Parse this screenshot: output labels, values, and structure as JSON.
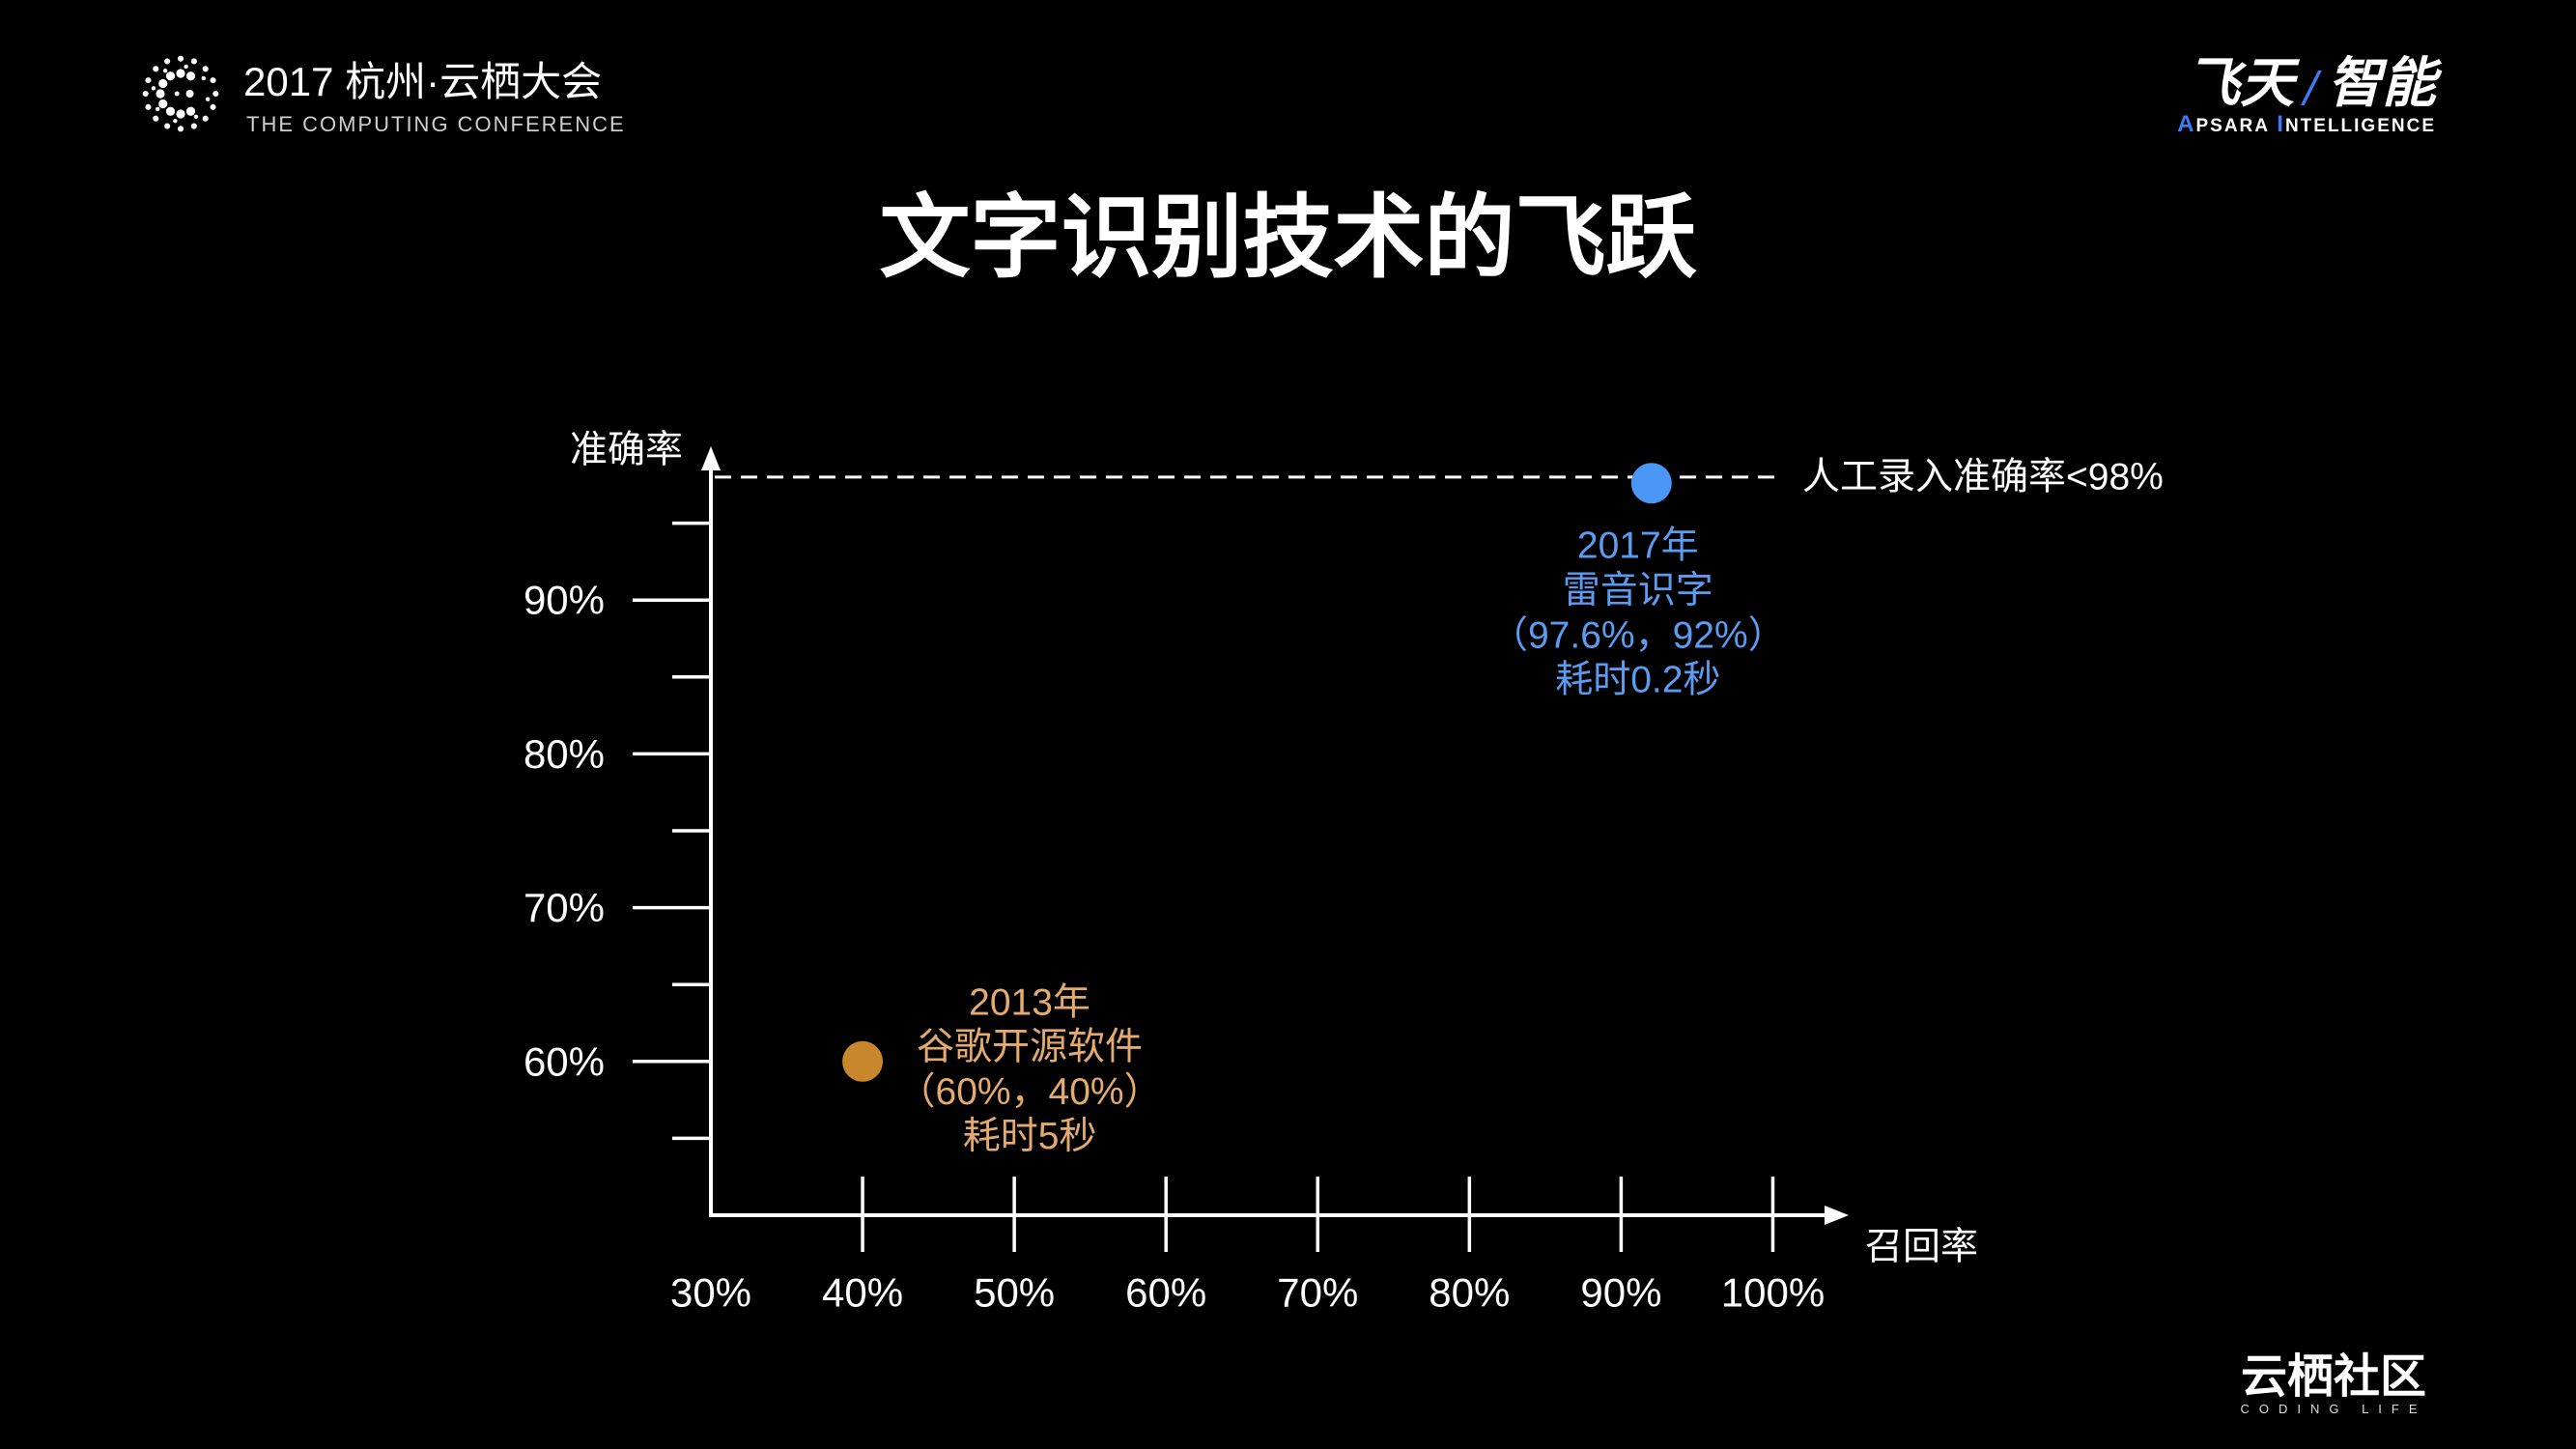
{
  "header": {
    "conference_title": "2017 杭州·云栖大会",
    "conference_subtitle": "THE COMPUTING CONFERENCE",
    "logo_icon": "dotted-circle-logo-icon",
    "brand": {
      "left": "飞天",
      "slash": "/",
      "right": "智能"
    },
    "brand_sub_words": [
      "APSARA",
      "INTELLIGENCE"
    ]
  },
  "footer": {
    "brand": "云栖社区",
    "tagline": "CODING LIFE"
  },
  "colors": {
    "background": "#000000",
    "foreground": "#ffffff",
    "brand_accent": "#3b7cf4"
  },
  "chart_data": {
    "type": "scatter",
    "title": "文字识别技术的飞跃",
    "xlabel": "召回率",
    "ylabel": "准确率",
    "xlim": [
      30,
      105
    ],
    "ylim": [
      50,
      100
    ],
    "xticks": [
      30,
      40,
      50,
      60,
      70,
      80,
      90,
      100
    ],
    "xtick_labels": [
      "30%",
      "40%",
      "50%",
      "60%",
      "70%",
      "80%",
      "90%",
      "100%"
    ],
    "yticks": [
      60,
      70,
      80,
      90
    ],
    "ytick_labels": [
      "60%",
      "70%",
      "80%",
      "90%"
    ],
    "yminor_ticks": [
      55,
      65,
      75,
      85,
      95
    ],
    "grid": false,
    "reference_lines": [
      {
        "value": 98,
        "style": "dashed",
        "label": "人工录入准确率<98%"
      }
    ],
    "points": [
      {
        "x": 40,
        "y": 60,
        "color": "#c8872d",
        "label_color": "#e4aa6e",
        "annotation": [
          "2013年",
          "谷歌开源软件",
          "（60%，40%）",
          "耗时5秒"
        ]
      },
      {
        "x": 92,
        "y": 97.6,
        "color": "#4a97f7",
        "label_color": "#5b9cf1",
        "annotation": [
          "2017年",
          "雷音识字",
          "（97.6%，92%）",
          "耗时0.2秒"
        ]
      }
    ]
  }
}
